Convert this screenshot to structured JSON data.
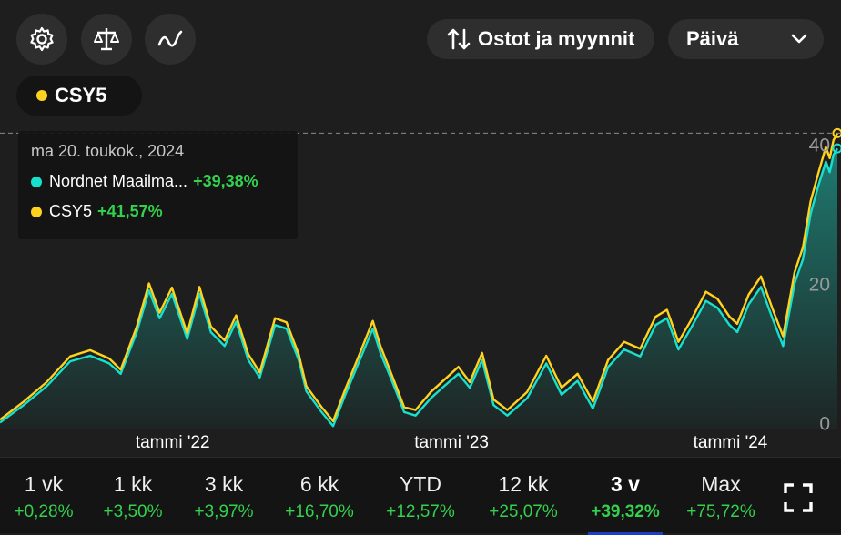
{
  "toolbar": {
    "icons": [
      "gear-icon",
      "scale-icon",
      "line-chart-icon"
    ],
    "trades_label": "Ostot ja myynnit",
    "period_select": "Päivä"
  },
  "series_chip": {
    "label": "CSY5",
    "color": "#ffd21f"
  },
  "tooltip": {
    "date": "ma 20. toukok., 2024",
    "rows": [
      {
        "name": "Nordnet Maailma...",
        "value": "+39,38%",
        "color": "#17e0cc"
      },
      {
        "name": "CSY5",
        "value": "+41,57%",
        "color": "#ffd21f"
      }
    ]
  },
  "periods": [
    {
      "label": "1 vk",
      "change": "+0,28%"
    },
    {
      "label": "1 kk",
      "change": "+3,50%"
    },
    {
      "label": "3 kk",
      "change": "+3,97%"
    },
    {
      "label": "6 kk",
      "change": "+16,70%"
    },
    {
      "label": "YTD",
      "change": "+12,57%"
    },
    {
      "label": "12 kk",
      "change": "+25,07%"
    },
    {
      "label": "3 v",
      "change": "+39,32%",
      "active": true
    },
    {
      "label": "Max",
      "change": "+75,72%"
    }
  ],
  "chart_data": {
    "type": "line",
    "x_tick_labels": [
      "tammi '22",
      "tammi '23",
      "tammi '24"
    ],
    "x_tick_dates": [
      "2022-01-01",
      "2023-01-01",
      "2024-01-01"
    ],
    "y_ticks": [
      0,
      20,
      40
    ],
    "ylim": [
      -1,
      44
    ],
    "xlim": [
      "2021-05-20",
      "2024-05-20"
    ],
    "series": [
      {
        "name": "Nordnet Maailma...",
        "color": "#17e0cc",
        "area": true,
        "points": [
          [
            "2021-05-20",
            0.0
          ],
          [
            "2021-06-20",
            2.5
          ],
          [
            "2021-07-20",
            5.2
          ],
          [
            "2021-08-20",
            8.8
          ],
          [
            "2021-09-15",
            9.6
          ],
          [
            "2021-10-10",
            8.5
          ],
          [
            "2021-10-25",
            7.0
          ],
          [
            "2021-11-15",
            13.0
          ],
          [
            "2021-12-01",
            19.0
          ],
          [
            "2021-12-15",
            15.0
          ],
          [
            "2021-12-31",
            18.5
          ],
          [
            "2022-01-20",
            12.0
          ],
          [
            "2022-02-05",
            18.5
          ],
          [
            "2022-02-20",
            13.0
          ],
          [
            "2022-03-10",
            11.0
          ],
          [
            "2022-03-25",
            14.5
          ],
          [
            "2022-04-10",
            9.0
          ],
          [
            "2022-04-25",
            6.5
          ],
          [
            "2022-05-15",
            14.0
          ],
          [
            "2022-05-30",
            13.5
          ],
          [
            "2022-06-15",
            9.0
          ],
          [
            "2022-06-25",
            4.5
          ],
          [
            "2022-07-15",
            1.5
          ],
          [
            "2022-07-30",
            -0.5
          ],
          [
            "2022-08-15",
            4.0
          ],
          [
            "2022-09-01",
            8.5
          ],
          [
            "2022-09-20",
            13.5
          ],
          [
            "2022-09-30",
            10.0
          ],
          [
            "2022-10-15",
            6.0
          ],
          [
            "2022-10-31",
            1.5
          ],
          [
            "2022-11-15",
            1.0
          ],
          [
            "2022-12-05",
            3.5
          ],
          [
            "2022-12-20",
            5.0
          ],
          [
            "2023-01-10",
            7.0
          ],
          [
            "2023-01-25",
            5.0
          ],
          [
            "2023-02-10",
            9.0
          ],
          [
            "2023-02-25",
            2.5
          ],
          [
            "2023-03-15",
            1.0
          ],
          [
            "2023-04-10",
            3.5
          ],
          [
            "2023-05-05",
            8.5
          ],
          [
            "2023-05-25",
            4.0
          ],
          [
            "2023-06-15",
            6.0
          ],
          [
            "2023-07-05",
            2.0
          ],
          [
            "2023-07-25",
            8.0
          ],
          [
            "2023-08-15",
            10.5
          ],
          [
            "2023-09-05",
            9.5
          ],
          [
            "2023-09-25",
            14.0
          ],
          [
            "2023-10-10",
            15.0
          ],
          [
            "2023-10-25",
            10.5
          ],
          [
            "2023-11-10",
            13.5
          ],
          [
            "2023-11-30",
            17.5
          ],
          [
            "2023-12-15",
            16.5
          ],
          [
            "2023-12-31",
            14.0
          ],
          [
            "2024-01-10",
            13.0
          ],
          [
            "2024-01-25",
            17.0
          ],
          [
            "2024-02-10",
            19.5
          ],
          [
            "2024-02-25",
            15.0
          ],
          [
            "2024-03-10",
            11.0
          ],
          [
            "2024-03-25",
            20.0
          ],
          [
            "2024-04-05",
            23.5
          ],
          [
            "2024-04-15",
            30.0
          ],
          [
            "2024-04-25",
            34.0
          ],
          [
            "2024-05-05",
            37.5
          ],
          [
            "2024-05-10",
            36.0
          ],
          [
            "2024-05-15",
            38.5
          ],
          [
            "2024-05-20",
            39.4
          ]
        ]
      },
      {
        "name": "CSY5",
        "color": "#ffd21f",
        "area": false,
        "points": [
          [
            "2021-05-20",
            0.4
          ],
          [
            "2021-06-20",
            3.0
          ],
          [
            "2021-07-20",
            5.8
          ],
          [
            "2021-08-20",
            9.5
          ],
          [
            "2021-09-15",
            10.4
          ],
          [
            "2021-10-10",
            9.2
          ],
          [
            "2021-10-25",
            7.6
          ],
          [
            "2021-11-15",
            13.8
          ],
          [
            "2021-12-01",
            20.0
          ],
          [
            "2021-12-15",
            15.8
          ],
          [
            "2021-12-31",
            19.4
          ],
          [
            "2022-01-20",
            12.8
          ],
          [
            "2022-02-05",
            19.5
          ],
          [
            "2022-02-20",
            13.8
          ],
          [
            "2022-03-10",
            11.8
          ],
          [
            "2022-03-25",
            15.4
          ],
          [
            "2022-04-10",
            9.8
          ],
          [
            "2022-04-25",
            7.2
          ],
          [
            "2022-05-15",
            15.0
          ],
          [
            "2022-05-30",
            14.4
          ],
          [
            "2022-06-15",
            9.8
          ],
          [
            "2022-06-25",
            5.2
          ],
          [
            "2022-07-15",
            2.2
          ],
          [
            "2022-07-30",
            0.2
          ],
          [
            "2022-08-15",
            4.8
          ],
          [
            "2022-09-01",
            9.4
          ],
          [
            "2022-09-20",
            14.6
          ],
          [
            "2022-09-30",
            11.0
          ],
          [
            "2022-10-15",
            6.8
          ],
          [
            "2022-10-31",
            2.2
          ],
          [
            "2022-11-15",
            1.8
          ],
          [
            "2022-12-05",
            4.4
          ],
          [
            "2022-12-20",
            5.9
          ],
          [
            "2023-01-10",
            8.0
          ],
          [
            "2023-01-25",
            5.8
          ],
          [
            "2023-02-10",
            10.0
          ],
          [
            "2023-02-25",
            3.3
          ],
          [
            "2023-03-15",
            1.8
          ],
          [
            "2023-04-10",
            4.4
          ],
          [
            "2023-05-05",
            9.6
          ],
          [
            "2023-05-25",
            5.0
          ],
          [
            "2023-06-15",
            7.0
          ],
          [
            "2023-07-05",
            3.0
          ],
          [
            "2023-07-25",
            9.0
          ],
          [
            "2023-08-15",
            11.6
          ],
          [
            "2023-09-05",
            10.6
          ],
          [
            "2023-09-25",
            15.2
          ],
          [
            "2023-10-10",
            16.2
          ],
          [
            "2023-10-25",
            11.6
          ],
          [
            "2023-11-10",
            14.6
          ],
          [
            "2023-11-30",
            18.8
          ],
          [
            "2023-12-15",
            17.8
          ],
          [
            "2023-12-31",
            15.2
          ],
          [
            "2024-01-10",
            14.2
          ],
          [
            "2024-01-25",
            18.4
          ],
          [
            "2024-02-10",
            21.0
          ],
          [
            "2024-02-25",
            16.4
          ],
          [
            "2024-03-10",
            12.4
          ],
          [
            "2024-03-25",
            21.6
          ],
          [
            "2024-04-05",
            25.2
          ],
          [
            "2024-04-15",
            31.8
          ],
          [
            "2024-04-25",
            35.8
          ],
          [
            "2024-05-05",
            39.6
          ],
          [
            "2024-05-10",
            38.0
          ],
          [
            "2024-05-15",
            40.6
          ],
          [
            "2024-05-20",
            41.6
          ]
        ]
      }
    ]
  }
}
